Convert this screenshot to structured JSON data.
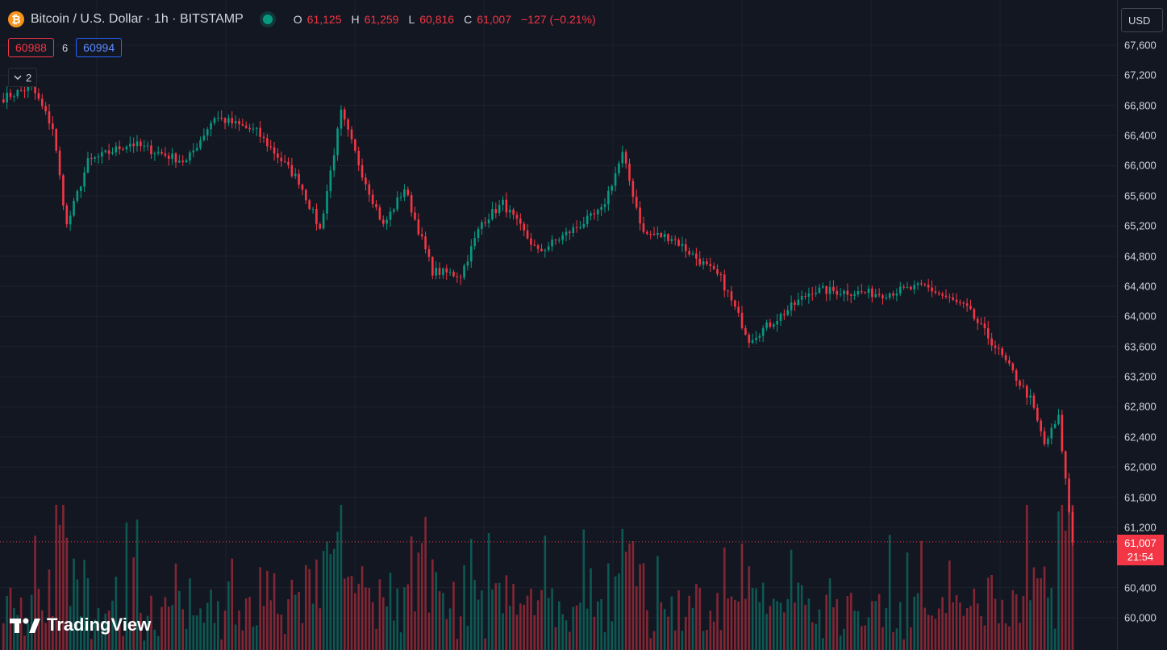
{
  "legend": {
    "coin_symbol": "₿",
    "title": "Bitcoin / U.S. Dollar · 1h · BITSTAMP",
    "ohlc": {
      "o_label": "O",
      "o_value": "61,125",
      "h_label": "H",
      "h_value": "61,259",
      "l_label": "L",
      "l_value": "60,816",
      "c_label": "C",
      "c_value": "61,007",
      "change": "−127 (−0.21%)"
    }
  },
  "quote": {
    "sell": "60988",
    "spread": "6",
    "buy": "60994"
  },
  "indicators_toggle": {
    "icon": "chevron-down-icon",
    "count": "2"
  },
  "currency": "USD",
  "price_scale": {
    "ticks": [
      "67,600",
      "67,200",
      "66,800",
      "66,400",
      "66,000",
      "65,600",
      "65,200",
      "64,800",
      "64,400",
      "64,000",
      "63,600",
      "63,200",
      "62,800",
      "62,400",
      "62,000",
      "61,600",
      "61,200",
      "60,400",
      "60,000"
    ],
    "min": 60000,
    "max": 67600,
    "step": 400
  },
  "last_price": {
    "value": "61,007",
    "countdown": "21:54"
  },
  "logo": {
    "text": "TradingView"
  },
  "colors": {
    "up": "#089981",
    "down": "#f23645",
    "background": "#131722",
    "grid": "#1e222d"
  },
  "chart_data": {
    "type": "candlestick",
    "symbol": "BTCUSD",
    "interval": "1h",
    "y_range": [
      60000,
      67600
    ],
    "key_points": [
      {
        "i": 0,
        "p": 66900
      },
      {
        "i": 8,
        "p": 67050
      },
      {
        "i": 14,
        "p": 66500
      },
      {
        "i": 18,
        "p": 65200
      },
      {
        "i": 24,
        "p": 66050
      },
      {
        "i": 36,
        "p": 66300
      },
      {
        "i": 52,
        "p": 66050
      },
      {
        "i": 60,
        "p": 66650
      },
      {
        "i": 72,
        "p": 66450
      },
      {
        "i": 84,
        "p": 65800
      },
      {
        "i": 90,
        "p": 65150
      },
      {
        "i": 96,
        "p": 66700
      },
      {
        "i": 102,
        "p": 65900
      },
      {
        "i": 108,
        "p": 65200
      },
      {
        "i": 114,
        "p": 65700
      },
      {
        "i": 122,
        "p": 64600
      },
      {
        "i": 130,
        "p": 64550
      },
      {
        "i": 136,
        "p": 65250
      },
      {
        "i": 142,
        "p": 65500
      },
      {
        "i": 152,
        "p": 64850
      },
      {
        "i": 170,
        "p": 65400
      },
      {
        "i": 176,
        "p": 66150
      },
      {
        "i": 182,
        "p": 65100
      },
      {
        "i": 190,
        "p": 65050
      },
      {
        "i": 204,
        "p": 64500
      },
      {
        "i": 212,
        "p": 63700
      },
      {
        "i": 218,
        "p": 63900
      },
      {
        "i": 230,
        "p": 64350
      },
      {
        "i": 250,
        "p": 64300
      },
      {
        "i": 262,
        "p": 64400
      },
      {
        "i": 274,
        "p": 64100
      },
      {
        "i": 282,
        "p": 63600
      },
      {
        "i": 292,
        "p": 62900
      },
      {
        "i": 296,
        "p": 62300
      },
      {
        "i": 300,
        "p": 62650
      },
      {
        "i": 304,
        "p": 61000
      }
    ],
    "volume_note": "relative volume bars per candle"
  }
}
